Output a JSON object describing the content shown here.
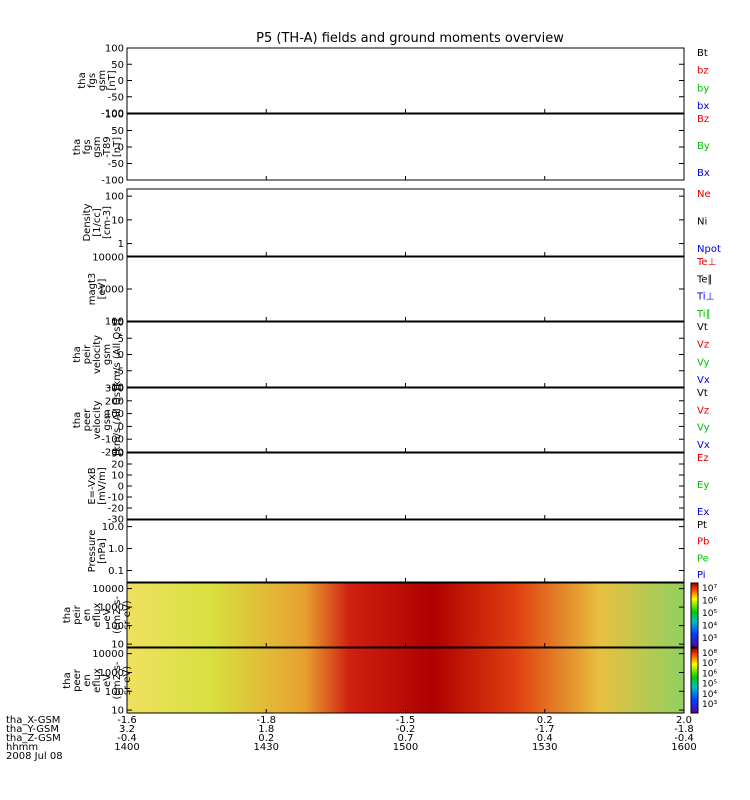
{
  "chart_data": {
    "type": "line",
    "title": "P5 (TH-A) fields and ground moments overview",
    "panels": [
      {
        "ylabel": [
          "tha",
          "fgs",
          "gsm",
          "[nT]"
        ],
        "yticks": [
          "100",
          "50",
          "0",
          "-50",
          "-100"
        ],
        "ylim": [
          -100,
          100
        ],
        "scale": "linear",
        "legend": [
          {
            "name": "Bt",
            "color": "#000000"
          },
          {
            "name": "bz",
            "color": "#e00000"
          },
          {
            "name": "by",
            "color": "#00c000"
          },
          {
            "name": "bx",
            "color": "#0000e0"
          }
        ]
      },
      {
        "ylabel": [
          "tha",
          "fgs",
          "gsm",
          "-T89",
          "[nT]"
        ],
        "yticks": [
          "100",
          "50",
          "0",
          "-50",
          "-100"
        ],
        "ylim": [
          -100,
          100
        ],
        "scale": "linear",
        "legend": [
          {
            "name": "Bz",
            "color": "#e00000"
          },
          {
            "name": "By",
            "color": "#00c000"
          },
          {
            "name": "Bx",
            "color": "#0000e0"
          }
        ]
      },
      {
        "ylabel": [
          "Density",
          "[1/cc]",
          "[cm-3]"
        ],
        "yticks": [
          "100",
          "10",
          "1"
        ],
        "ylim": [
          0.3,
          200
        ],
        "scale": "log",
        "legend": [
          {
            "name": "Ne",
            "color": "#e00000"
          },
          {
            "name": "Ni",
            "color": "#000000"
          },
          {
            "name": "Npot",
            "color": "#0000e0"
          }
        ]
      },
      {
        "ylabel": [
          "magt3",
          "[eV]"
        ],
        "yticks": [
          "10000",
          "1000",
          "100"
        ],
        "ylim": [
          100,
          10000
        ],
        "scale": "log",
        "legend": [
          {
            "name": "Te⊥",
            "color": "#e00000"
          },
          {
            "name": "Te∥",
            "color": "#000000"
          },
          {
            "name": "Ti⊥",
            "color": "#0000e0"
          },
          {
            "name": "Ti∥",
            "color": "#00c000"
          }
        ]
      },
      {
        "ylabel": [
          "tha",
          "peir",
          "velocity",
          "gsm",
          "[km/s (All Qs)]"
        ],
        "yticks": [
          "10",
          "5",
          "0",
          "-5",
          "-10"
        ],
        "ylim": [
          -10,
          10
        ],
        "scale": "linear",
        "legend": [
          {
            "name": "Vt",
            "color": "#000000"
          },
          {
            "name": "Vz",
            "color": "#e00000"
          },
          {
            "name": "Vy",
            "color": "#00c000"
          },
          {
            "name": "Vx",
            "color": "#0000e0"
          }
        ]
      },
      {
        "ylabel": [
          "tha",
          "peer",
          "velocity",
          "gsm",
          "[km/s (All Qs)]"
        ],
        "yticks": [
          "300",
          "200",
          "100",
          "0",
          "-100",
          "-200"
        ],
        "ylim": [
          -200,
          300
        ],
        "scale": "linear",
        "legend": [
          {
            "name": "Vt",
            "color": "#000000"
          },
          {
            "name": "Vz",
            "color": "#e00000"
          },
          {
            "name": "Vy",
            "color": "#00c000"
          },
          {
            "name": "Vx",
            "color": "#0000e0"
          }
        ]
      },
      {
        "ylabel": [
          "E=-VxB",
          "[mV/m]"
        ],
        "yticks": [
          "30",
          "20",
          "10",
          "0",
          "-10",
          "-20",
          "-30"
        ],
        "ylim": [
          -30,
          30
        ],
        "scale": "linear",
        "legend": [
          {
            "name": "Ez",
            "color": "#e00000"
          },
          {
            "name": "Ey",
            "color": "#00c000"
          },
          {
            "name": "Ex",
            "color": "#0000e0"
          }
        ]
      },
      {
        "ylabel": [
          "Pressure",
          "[nPa]"
        ],
        "yticks": [
          "10.0",
          "1.0",
          "0.1"
        ],
        "ylim": [
          0.03,
          20
        ],
        "scale": "log",
        "legend": [
          {
            "name": "Pt",
            "color": "#000000"
          },
          {
            "name": "Pb",
            "color": "#e00000"
          },
          {
            "name": "Pe",
            "color": "#00c000"
          },
          {
            "name": "Pi",
            "color": "#0000e0"
          }
        ]
      },
      {
        "ylabel": [
          "tha",
          "peir",
          "en",
          "eflux",
          "eV",
          "(cm2-s-",
          "sr-eV)"
        ],
        "yticks": [
          "10000",
          "1000",
          "100",
          "10"
        ],
        "ylim": [
          7,
          20000
        ],
        "scale": "log",
        "colorbar": [
          "10⁷",
          "10⁶",
          "10⁵",
          "10⁴",
          "10³"
        ]
      },
      {
        "ylabel": [
          "tha",
          "peer",
          "en",
          "eflux",
          "eV",
          "(cm2-s-",
          "sr-eV)"
        ],
        "yticks": [
          "10000",
          "1000",
          "100",
          "10"
        ],
        "ylim": [
          7,
          20000
        ],
        "scale": "log",
        "colorbar": [
          "10⁸",
          "10⁷",
          "10⁶",
          "10⁵",
          "10⁴",
          "10³"
        ]
      }
    ],
    "x_axis": {
      "rows": [
        {
          "label": "tha_X-GSM",
          "values": [
            "-1.6",
            "-1.8",
            "-1.5",
            "0.2",
            "2.0"
          ]
        },
        {
          "label": "tha_Y-GSM",
          "values": [
            "3.2",
            "1.8",
            "-0.2",
            "-1.7",
            "-1.8"
          ]
        },
        {
          "label": "tha_Z-GSM",
          "values": [
            "-0.4",
            "0.2",
            "0.7",
            "0.4",
            "-0.4"
          ]
        },
        {
          "label": "hhmm",
          "values": [
            "1400",
            "1430",
            "1500",
            "1530",
            "1600"
          ]
        }
      ],
      "date": "2008 Jul 08"
    }
  }
}
